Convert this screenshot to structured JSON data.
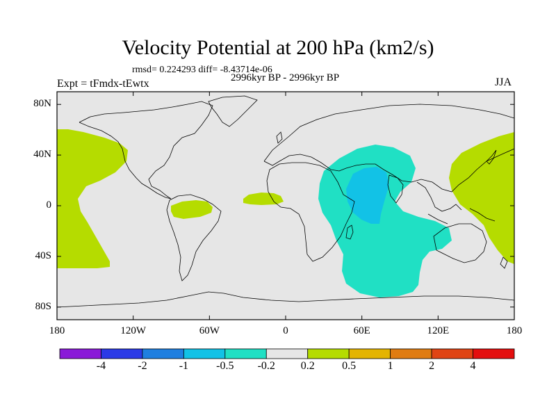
{
  "title": "Velocity Potential at 200 hPa (km2/s)",
  "stats_line": "rmsd= 0.224293 diff= -8.43714e-06",
  "left_label": "Expt = tFmdx-tEwtx",
  "center_label": "2996kyr BP - 2996kyr BP",
  "right_label": "JJA",
  "chart_data": {
    "type": "heatmap",
    "map_projection": "cylindrical equidistant",
    "lon_range": [
      -180,
      180
    ],
    "lat_range": [
      -90,
      90
    ],
    "lat_ticks": [
      {
        "value": 80,
        "label": "80N"
      },
      {
        "value": 40,
        "label": "40N"
      },
      {
        "value": 0,
        "label": "0"
      },
      {
        "value": -40,
        "label": "40S"
      },
      {
        "value": -80,
        "label": "80S"
      }
    ],
    "lon_ticks": [
      {
        "value": -180,
        "label": "180"
      },
      {
        "value": -120,
        "label": "120W"
      },
      {
        "value": -60,
        "label": "60W"
      },
      {
        "value": 0,
        "label": "0"
      },
      {
        "value": 60,
        "label": "60E"
      },
      {
        "value": 120,
        "label": "120E"
      },
      {
        "value": 180,
        "label": "180"
      }
    ],
    "colorbar": {
      "levels": [
        "-4",
        "-2",
        "-1",
        "-0.5",
        "-0.2",
        "0.2",
        "0.5",
        "1",
        "2",
        "4"
      ],
      "colors": [
        "#8a1ad8",
        "#2b3ae6",
        "#1f7fe0",
        "#12c2e6",
        "#20e0c4",
        "#e6e6e6",
        "#b5dc00",
        "#e4b400",
        "#e07c12",
        "#e04414",
        "#e40e0e"
      ]
    },
    "background_color": "#e6e6e6",
    "regions": [
      {
        "name": "pacific-west",
        "level_range": "0.2 to 0.5",
        "color": "#b5dc00"
      },
      {
        "name": "south-america",
        "level_range": "0.2 to 0.5",
        "color": "#b5dc00"
      },
      {
        "name": "tropical-atlantic",
        "level_range": "0.2 to 0.5",
        "color": "#b5dc00"
      },
      {
        "name": "west-pacific",
        "level_range": "0.2 to 0.5",
        "color": "#b5dc00"
      },
      {
        "name": "indian-ocean",
        "level_range": "-0.5 to -0.2",
        "color": "#20e0c4"
      },
      {
        "name": "arabian-sea",
        "level_range": "-1 to -0.5",
        "color": "#12c2e6"
      }
    ]
  }
}
